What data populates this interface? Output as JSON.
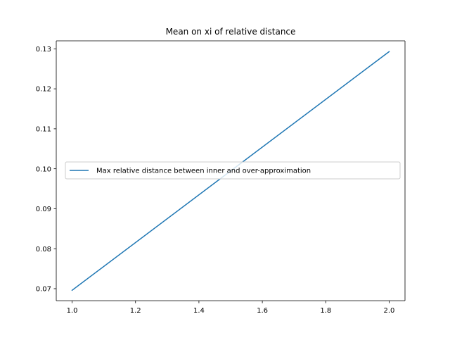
{
  "chart_data": {
    "type": "line",
    "title": "Mean on xi of relative distance",
    "xlabel": "",
    "ylabel": "",
    "xlim": [
      0.95,
      2.05
    ],
    "ylim": [
      0.067,
      0.132
    ],
    "x_ticks": [
      1.0,
      1.2,
      1.4,
      1.6,
      1.8,
      2.0
    ],
    "x_tick_labels": [
      "1.0",
      "1.2",
      "1.4",
      "1.6",
      "1.8",
      "2.0"
    ],
    "y_ticks": [
      0.07,
      0.08,
      0.09,
      0.1,
      0.11,
      0.12,
      0.13
    ],
    "y_tick_labels": [
      "0.07",
      "0.08",
      "0.09",
      "0.10",
      "0.11",
      "0.12",
      "0.13"
    ],
    "grid": false,
    "legend_position": "center-right",
    "series": [
      {
        "name": "Max relative distance between inner and over-approximation",
        "color": "#1f77b4",
        "x": [
          1.0,
          2.0
        ],
        "y": [
          0.0696,
          0.1293
        ]
      }
    ]
  }
}
